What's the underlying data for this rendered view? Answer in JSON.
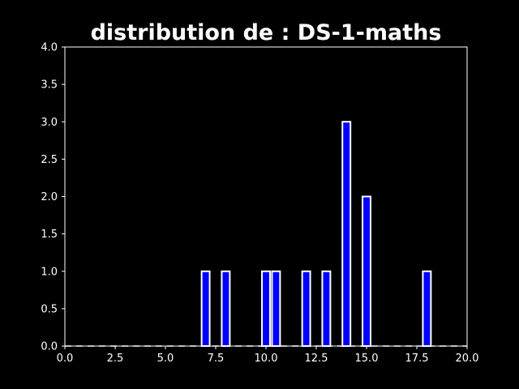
{
  "chart_data": {
    "type": "bar",
    "title": "distribution de : DS-1-maths",
    "xlabel": "",
    "ylabel": "",
    "xlim": [
      0,
      20
    ],
    "ylim": [
      0,
      4
    ],
    "x_ticks": [
      "0.0",
      "2.5",
      "5.0",
      "7.5",
      "10.0",
      "12.5",
      "15.0",
      "17.5",
      "20.0"
    ],
    "y_ticks": [
      "0.0",
      "0.5",
      "1.0",
      "1.5",
      "2.0",
      "2.5",
      "3.0",
      "3.5",
      "4.0"
    ],
    "bar_width": 0.4,
    "x": [
      7,
      8,
      10,
      10.5,
      12,
      13,
      14,
      15,
      18
    ],
    "values": [
      1,
      1,
      1,
      1,
      1,
      1,
      3,
      2,
      1
    ],
    "grid": false,
    "colors": {
      "background": "#000000",
      "bar_fill": "#0000ff",
      "bar_edge": "#ffffff",
      "axes": "#ffffff",
      "text": "#ffffff"
    }
  }
}
